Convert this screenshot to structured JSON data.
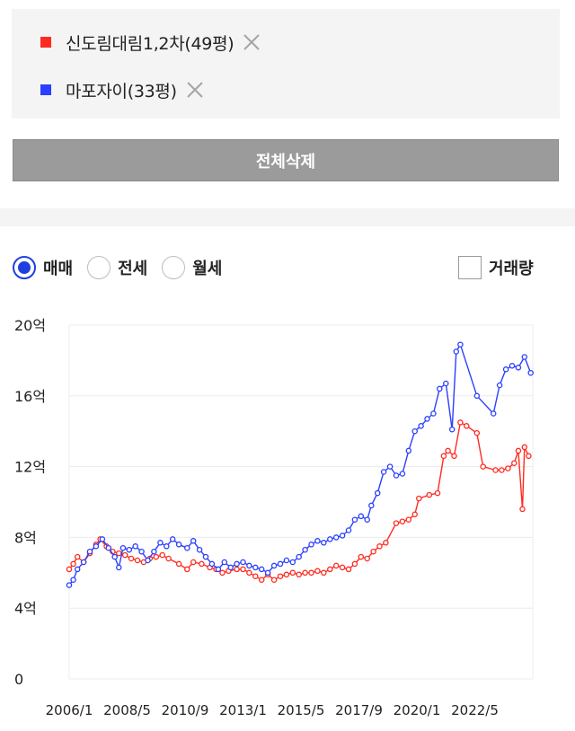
{
  "compare_list": {
    "items": [
      {
        "label": "신도림대림1,2차(49평)",
        "color": "#ff2a1f",
        "remove_icon": "close-icon"
      },
      {
        "label": "마포자이(33평)",
        "color": "#2a3fff",
        "remove_icon": "close-icon"
      }
    ],
    "delete_all_label": "전체삭제"
  },
  "trade_type": {
    "options": [
      "매매",
      "전세",
      "월세"
    ],
    "selected": "매매"
  },
  "volume_toggle": {
    "label": "거래량",
    "checked": false
  },
  "chart_data": {
    "type": "line",
    "title": "",
    "xlabel": "",
    "ylabel": "",
    "ylim": [
      0,
      20
    ],
    "x_range": [
      "2006-01",
      "2024-09"
    ],
    "y_ticks": [
      0,
      4,
      8,
      12,
      16,
      20
    ],
    "y_tick_labels": [
      "0",
      "4억",
      "8억",
      "12억",
      "16억",
      "20억"
    ],
    "x_tick_labels": [
      "2006/1",
      "2008/5",
      "2010/9",
      "2013/1",
      "2015/5",
      "2017/9",
      "2020/1",
      "2022/5"
    ],
    "x_ticks": [
      "2006-01",
      "2008-05",
      "2010-09",
      "2013-01",
      "2015-05",
      "2017-09",
      "2020-01",
      "2022-05"
    ],
    "grid": true,
    "legend": "none",
    "series": [
      {
        "name": "신도림대림1,2차(49평)",
        "color": "#ff2a1f",
        "points": [
          [
            "2006-01",
            6.2
          ],
          [
            "2006-03",
            6.5
          ],
          [
            "2006-05",
            6.9
          ],
          [
            "2006-08",
            6.6
          ],
          [
            "2006-11",
            7.1
          ],
          [
            "2007-02",
            7.6
          ],
          [
            "2007-04",
            7.9
          ],
          [
            "2007-07",
            7.5
          ],
          [
            "2007-10",
            7.2
          ],
          [
            "2008-01",
            7.1
          ],
          [
            "2008-04",
            7.0
          ],
          [
            "2008-07",
            6.8
          ],
          [
            "2008-10",
            6.7
          ],
          [
            "2009-01",
            6.6
          ],
          [
            "2009-04",
            6.8
          ],
          [
            "2009-07",
            6.9
          ],
          [
            "2009-10",
            7.0
          ],
          [
            "2010-01",
            6.8
          ],
          [
            "2010-06",
            6.5
          ],
          [
            "2010-10",
            6.2
          ],
          [
            "2011-01",
            6.6
          ],
          [
            "2011-05",
            6.5
          ],
          [
            "2011-09",
            6.3
          ],
          [
            "2011-12",
            6.2
          ],
          [
            "2012-03",
            6.0
          ],
          [
            "2012-06",
            6.1
          ],
          [
            "2012-10",
            6.2
          ],
          [
            "2013-01",
            6.2
          ],
          [
            "2013-04",
            6.0
          ],
          [
            "2013-07",
            5.8
          ],
          [
            "2013-10",
            5.6
          ],
          [
            "2014-01",
            5.9
          ],
          [
            "2014-04",
            5.6
          ],
          [
            "2014-07",
            5.8
          ],
          [
            "2014-10",
            5.9
          ],
          [
            "2015-01",
            6.0
          ],
          [
            "2015-04",
            5.9
          ],
          [
            "2015-07",
            6.0
          ],
          [
            "2015-10",
            6.0
          ],
          [
            "2016-01",
            6.1
          ],
          [
            "2016-04",
            6.0
          ],
          [
            "2016-07",
            6.2
          ],
          [
            "2016-10",
            6.4
          ],
          [
            "2017-01",
            6.3
          ],
          [
            "2017-04",
            6.2
          ],
          [
            "2017-07",
            6.5
          ],
          [
            "2017-10",
            6.9
          ],
          [
            "2018-01",
            6.8
          ],
          [
            "2018-04",
            7.2
          ],
          [
            "2018-07",
            7.5
          ],
          [
            "2018-10",
            7.7
          ],
          [
            "2019-03",
            8.8
          ],
          [
            "2019-06",
            8.9
          ],
          [
            "2019-09",
            9.0
          ],
          [
            "2019-12",
            9.3
          ],
          [
            "2020-02",
            10.2
          ],
          [
            "2020-07",
            10.4
          ],
          [
            "2020-11",
            10.5
          ],
          [
            "2021-02",
            12.6
          ],
          [
            "2021-04",
            12.9
          ],
          [
            "2021-07",
            12.6
          ],
          [
            "2021-10",
            14.5
          ],
          [
            "2022-01",
            14.3
          ],
          [
            "2022-06",
            13.9
          ],
          [
            "2022-09",
            12.0
          ],
          [
            "2023-03",
            11.8
          ],
          [
            "2023-06",
            11.8
          ],
          [
            "2023-09",
            11.9
          ],
          [
            "2023-12",
            12.2
          ],
          [
            "2024-02",
            12.9
          ],
          [
            "2024-04",
            9.6
          ],
          [
            "2024-05",
            13.1
          ],
          [
            "2024-07",
            12.6
          ]
        ]
      },
      {
        "name": "마포자이(33평)",
        "color": "#2a3fff",
        "points": [
          [
            "2006-01",
            5.3
          ],
          [
            "2006-03",
            5.6
          ],
          [
            "2006-05",
            6.2
          ],
          [
            "2006-08",
            6.6
          ],
          [
            "2006-11",
            7.2
          ],
          [
            "2007-02",
            7.5
          ],
          [
            "2007-05",
            7.9
          ],
          [
            "2007-08",
            7.4
          ],
          [
            "2007-11",
            6.9
          ],
          [
            "2008-01",
            6.3
          ],
          [
            "2008-03",
            7.4
          ],
          [
            "2008-06",
            7.3
          ],
          [
            "2008-09",
            7.5
          ],
          [
            "2008-12",
            7.2
          ],
          [
            "2009-03",
            6.7
          ],
          [
            "2009-06",
            7.2
          ],
          [
            "2009-09",
            7.7
          ],
          [
            "2009-12",
            7.5
          ],
          [
            "2010-03",
            7.9
          ],
          [
            "2010-06",
            7.6
          ],
          [
            "2010-10",
            7.4
          ],
          [
            "2011-01",
            7.8
          ],
          [
            "2011-04",
            7.3
          ],
          [
            "2011-07",
            6.9
          ],
          [
            "2011-10",
            6.5
          ],
          [
            "2012-01",
            6.2
          ],
          [
            "2012-04",
            6.6
          ],
          [
            "2012-07",
            6.3
          ],
          [
            "2012-10",
            6.5
          ],
          [
            "2013-01",
            6.6
          ],
          [
            "2013-04",
            6.4
          ],
          [
            "2013-07",
            6.3
          ],
          [
            "2013-10",
            6.2
          ],
          [
            "2014-01",
            6.0
          ],
          [
            "2014-04",
            6.4
          ],
          [
            "2014-07",
            6.5
          ],
          [
            "2014-10",
            6.7
          ],
          [
            "2015-01",
            6.6
          ],
          [
            "2015-04",
            6.9
          ],
          [
            "2015-07",
            7.3
          ],
          [
            "2015-10",
            7.6
          ],
          [
            "2016-01",
            7.8
          ],
          [
            "2016-04",
            7.7
          ],
          [
            "2016-07",
            7.9
          ],
          [
            "2016-10",
            8.0
          ],
          [
            "2017-01",
            8.1
          ],
          [
            "2017-04",
            8.4
          ],
          [
            "2017-07",
            9.0
          ],
          [
            "2017-10",
            9.2
          ],
          [
            "2018-01",
            9.0
          ],
          [
            "2018-03",
            9.8
          ],
          [
            "2018-06",
            10.5
          ],
          [
            "2018-09",
            11.7
          ],
          [
            "2018-12",
            12.0
          ],
          [
            "2019-03",
            11.5
          ],
          [
            "2019-06",
            11.6
          ],
          [
            "2019-09",
            12.9
          ],
          [
            "2019-12",
            14.0
          ],
          [
            "2020-03",
            14.3
          ],
          [
            "2020-06",
            14.7
          ],
          [
            "2020-09",
            15.0
          ],
          [
            "2020-12",
            16.4
          ],
          [
            "2021-03",
            16.7
          ],
          [
            "2021-06",
            14.1
          ],
          [
            "2021-08",
            18.5
          ],
          [
            "2021-10",
            18.9
          ],
          [
            "2022-06",
            16.0
          ],
          [
            "2023-02",
            15.0
          ],
          [
            "2023-05",
            16.6
          ],
          [
            "2023-08",
            17.5
          ],
          [
            "2023-11",
            17.7
          ],
          [
            "2024-02",
            17.6
          ],
          [
            "2024-05",
            18.2
          ],
          [
            "2024-08",
            17.3
          ]
        ]
      }
    ]
  }
}
